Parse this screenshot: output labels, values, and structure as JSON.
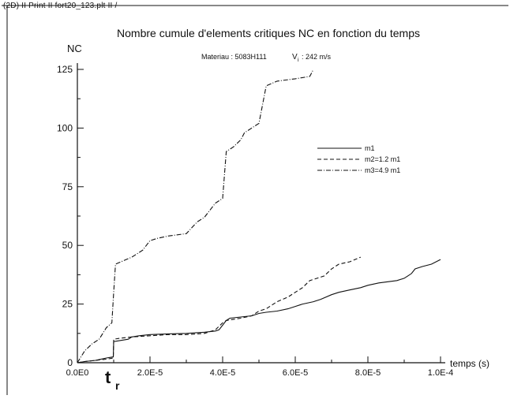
{
  "window": {
    "header": "(2D) II  Print II  fort20_123.plt II /"
  },
  "chart_data": {
    "type": "line",
    "title": "Nombre cumule d'elements critiques NC en fonction du temps",
    "subtitle_material": "Materiau : 5083H111",
    "subtitle_velocity_symbol": "V",
    "subtitle_velocity_sub": "i",
    "subtitle_velocity_value": ": 242 m/s",
    "xlabel": "temps (s)",
    "ylabel": "NC",
    "xlim": [
      0,
      0.0001
    ],
    "ylim": [
      0,
      125
    ],
    "x_ticks": [
      0,
      2e-05,
      4e-05,
      6e-05,
      8e-05,
      0.0001
    ],
    "x_tick_labels": [
      "0.0E0",
      "2.0E-5",
      "4.0E-5",
      "6.0E-5",
      "8.0E-5",
      "1.0E-4"
    ],
    "y_ticks": [
      0,
      25,
      50,
      75,
      100,
      125
    ],
    "y_tick_labels": [
      "0",
      "25",
      "50",
      "75",
      "100",
      "125"
    ],
    "grid": false,
    "legend_position": "middle-right",
    "annotation": {
      "text": "t",
      "sub": "r",
      "x": 1e-05
    },
    "series": [
      {
        "name": "m1",
        "style": "solid",
        "x": [
          0,
          2e-06,
          5e-06,
          8e-06,
          9.9e-06,
          1e-05,
          1.2e-05,
          1.4e-05,
          1.5e-05,
          1.7e-05,
          2e-05,
          2.5e-05,
          3e-05,
          3.5e-05,
          3.8e-05,
          3.9e-05,
          4e-05,
          4.1e-05,
          4.2e-05,
          4.5e-05,
          4.8e-05,
          5e-05,
          5.2e-05,
          5.5e-05,
          5.8e-05,
          6e-05,
          6.2e-05,
          6.5e-05,
          6.7e-05,
          7e-05,
          7.2e-05,
          7.5e-05,
          7.8e-05,
          8e-05,
          8.3e-05,
          8.8e-05,
          9e-05,
          9.1e-05,
          9.2e-05,
          9.3e-05,
          9.5e-05,
          9.75e-05,
          0.0001
        ],
        "y": [
          0,
          0.5,
          1,
          2,
          2.5,
          9,
          9.5,
          10,
          11,
          11.5,
          12,
          12.3,
          12.5,
          13,
          13.5,
          14,
          16,
          18,
          19,
          19.5,
          20,
          21,
          21.5,
          22,
          23,
          24,
          25,
          26,
          27,
          29,
          30,
          31,
          32,
          33,
          34,
          35,
          36,
          37,
          38,
          40,
          41,
          42,
          44
        ]
      },
      {
        "name": "m2=1.2 m1",
        "style": "dashed",
        "x": [
          0,
          2e-06,
          5e-06,
          8e-06,
          9.9e-06,
          1e-05,
          1.2e-05,
          1.5e-05,
          2e-05,
          2.5e-05,
          3e-05,
          3.5e-05,
          3.8e-05,
          4e-05,
          4.1e-05,
          4.5e-05,
          4.8e-05,
          5e-05,
          5.2e-05,
          5.4e-05,
          5.5e-05,
          5.8e-05,
          6e-05,
          6.2e-05,
          6.4e-05,
          6.6e-05,
          6.8e-05,
          7e-05,
          7.2e-05,
          7.5e-05,
          7.8e-05
        ],
        "y": [
          0,
          0.5,
          1,
          1.5,
          2,
          10,
          10.5,
          11,
          11.5,
          12,
          12,
          12.5,
          14,
          17,
          18,
          19,
          20,
          22,
          23,
          25,
          26,
          28,
          30,
          32,
          35,
          36,
          37,
          40,
          42,
          43,
          45
        ]
      },
      {
        "name": "m3=4.9 m1",
        "style": "dashdot",
        "x": [
          0,
          2e-06,
          4e-06,
          6e-06,
          8e-06,
          9.5e-06,
          1e-05,
          1.05e-05,
          1.2e-05,
          1.5e-05,
          1.8e-05,
          2e-05,
          2.2e-05,
          2.5e-05,
          3e-05,
          3.3e-05,
          3.5e-05,
          3.8e-05,
          4e-05,
          4.05e-05,
          4.1e-05,
          4.3e-05,
          4.5e-05,
          4.6e-05,
          4.8e-05,
          5e-05,
          5.1e-05,
          5.2e-05,
          5.5e-05,
          6e-05,
          6.4e-05,
          6.5e-05
        ],
        "y": [
          0,
          5,
          8,
          10,
          15,
          17,
          30,
          42,
          43,
          45,
          48,
          52,
          53,
          54,
          55,
          60,
          62,
          68,
          70,
          80,
          90,
          92,
          95,
          98,
          100,
          102,
          110,
          118,
          120,
          121,
          122,
          125
        ]
      }
    ]
  }
}
